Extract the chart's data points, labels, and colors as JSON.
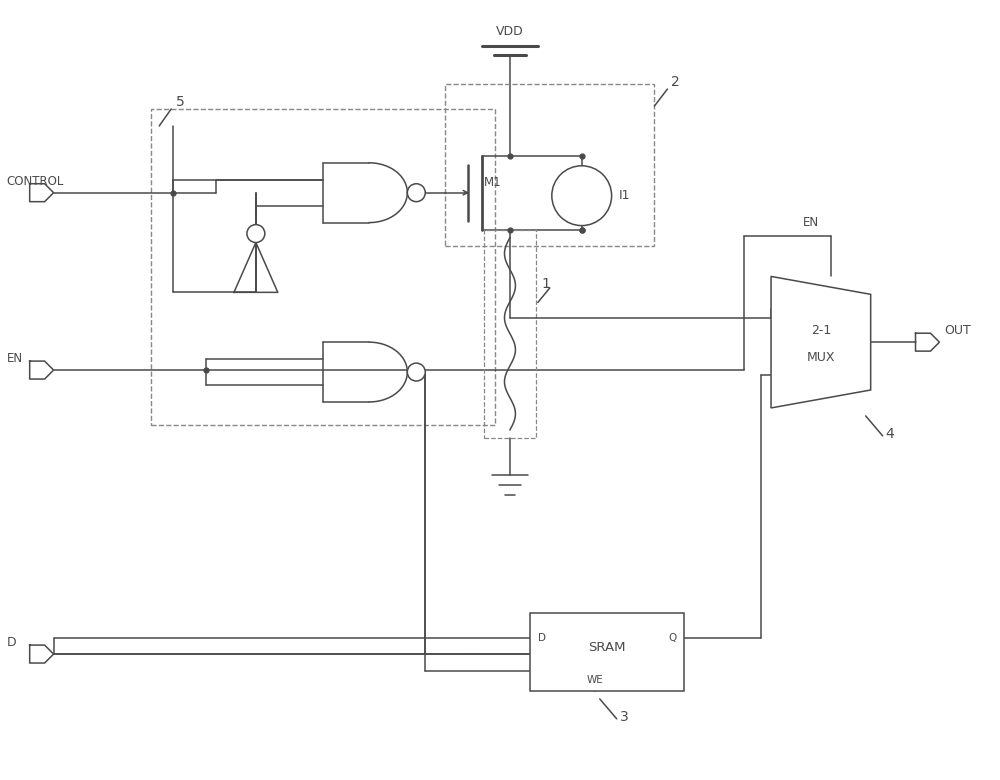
{
  "line_color": "#4a4a4a",
  "dashed_color": "#888888",
  "figsize": [
    10.0,
    7.8
  ],
  "dpi": 100,
  "xlim": [
    0,
    10
  ],
  "ylim": [
    0,
    7.8
  ]
}
